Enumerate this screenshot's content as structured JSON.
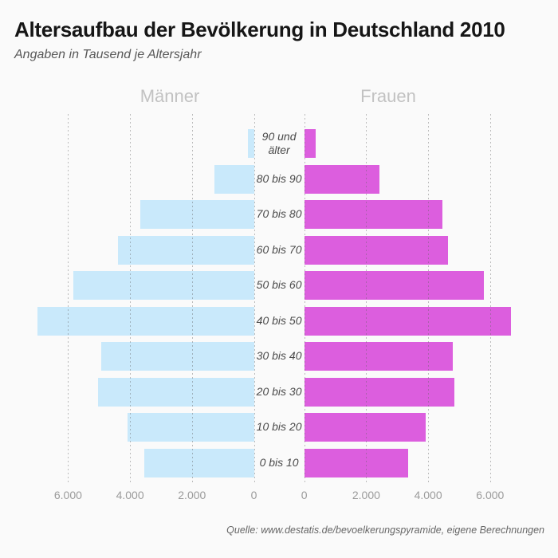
{
  "header": {
    "title": "Altersaufbau der Bevölkerung in Deutschland 2010",
    "subtitle": "Angaben in Tausend je Altersjahr"
  },
  "source_note": "Quelle: www.destatis.de/bevoelkerungspyramide, eigene Berechnungen",
  "colors": {
    "background": "#fafafa",
    "male_bar": "#c9e9fb",
    "female_bar": "#dc5ede",
    "gridline": "#c6c6c6",
    "tick_label": "#9b9b9b",
    "series_header": "#c2c2c2",
    "age_label": "#4a4a4a"
  },
  "chart_data": {
    "type": "bar",
    "variant": "population-pyramid",
    "title": "Altersaufbau der Bevölkerung in Deutschland 2010",
    "subtitle": "Angaben in Tausend je Altersjahr",
    "unit": "Tausend je Altersjahr",
    "grid": "dotted-vertical",
    "categories": [
      "90 und älter",
      "80 bis 90",
      "70 bis 80",
      "60 bis 70",
      "50 bis 60",
      "40 bis 50",
      "30 bis 40",
      "20 bis 30",
      "10 bis 20",
      "0 bis 10"
    ],
    "series": [
      {
        "name": "Männer",
        "side": "left",
        "color": "#c9e9fb",
        "values": [
          190,
          1270,
          3670,
          4380,
          5830,
          6980,
          4930,
          5030,
          4090,
          3530
        ]
      },
      {
        "name": "Frauen",
        "side": "right",
        "color": "#dc5ede",
        "values": [
          380,
          2420,
          4460,
          4630,
          5810,
          6680,
          4800,
          4840,
          3910,
          3350
        ]
      }
    ],
    "axis": {
      "max": 7200,
      "left_ticks": [
        {
          "label": "6.000",
          "value": 6000
        },
        {
          "label": "4.000",
          "value": 4000
        },
        {
          "label": "2.000",
          "value": 2000
        },
        {
          "label": "0",
          "value": 0
        }
      ],
      "right_ticks": [
        {
          "label": "0",
          "value": 0
        },
        {
          "label": "2.000",
          "value": 2000
        },
        {
          "label": "4.000",
          "value": 4000
        },
        {
          "label": "6.000",
          "value": 6000
        }
      ]
    }
  }
}
